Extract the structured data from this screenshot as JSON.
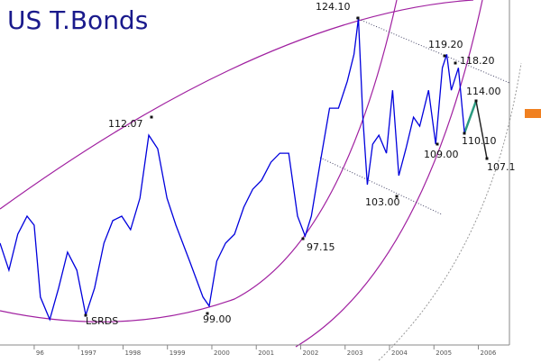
{
  "chart_data": {
    "type": "line",
    "title": "US T.Bonds",
    "color": "#0000dd",
    "x": [
      1995.23,
      1995.43,
      1995.63,
      1995.84,
      1996.0,
      1996.14,
      1996.35,
      1996.55,
      1996.75,
      1996.96,
      1997.16,
      1997.36,
      1997.57,
      1997.77,
      1997.97,
      1998.17,
      1998.38,
      1998.58,
      1998.78,
      1998.99,
      1999.19,
      1999.5,
      1999.8,
      1999.94,
      2000.11,
      2000.31,
      2000.51,
      2000.72,
      2000.92,
      2001.12,
      2001.33,
      2001.53,
      2001.73,
      2001.93,
      2002.1,
      2002.24,
      2002.44,
      2002.65,
      2002.85,
      2003.05,
      2003.2,
      2003.3,
      2003.4,
      2003.5,
      2003.62,
      2003.76,
      2003.93,
      2004.07,
      2004.21,
      2004.37,
      2004.54,
      2004.68,
      2004.88,
      2005.04,
      2005.19,
      2005.29,
      2005.39,
      2005.55,
      2005.69
    ],
    "values": [
      96.62,
      93.35,
      97.71,
      99.89,
      98.8,
      90.08,
      87.35,
      91.17,
      95.53,
      93.35,
      87.9,
      91.17,
      96.62,
      99.35,
      99.89,
      98.25,
      102.07,
      109.71,
      108.07,
      102.07,
      98.8,
      94.44,
      90.08,
      88.99,
      94.44,
      96.62,
      97.71,
      100.98,
      103.16,
      104.25,
      106.43,
      107.52,
      107.52,
      99.89,
      97.49,
      99.89,
      106.43,
      112.98,
      112.98,
      116.25,
      119.52,
      123.88,
      111.89,
      103.71,
      108.61,
      109.71,
      107.52,
      115.16,
      104.8,
      108.07,
      111.89,
      110.8,
      115.16,
      108.61,
      117.88,
      119.52,
      115.16,
      117.88,
      109.92
    ],
    "xlim": [
      1995.23,
      2006.7
    ],
    "ylim": [
      84.6,
      126.1
    ],
    "xticks": [
      {
        "value": 1996,
        "label": "96"
      },
      1997,
      1998,
      1999,
      2000,
      2001,
      2002,
      2003,
      2004,
      2005,
      2006
    ],
    "annotations": [
      "124.10",
      "119.20",
      "118.20",
      "112.07",
      "114.00",
      "110.10",
      "109.00",
      "107.1",
      "103.00",
      "97.15",
      "99.00",
      "LSRDS"
    ]
  }
}
